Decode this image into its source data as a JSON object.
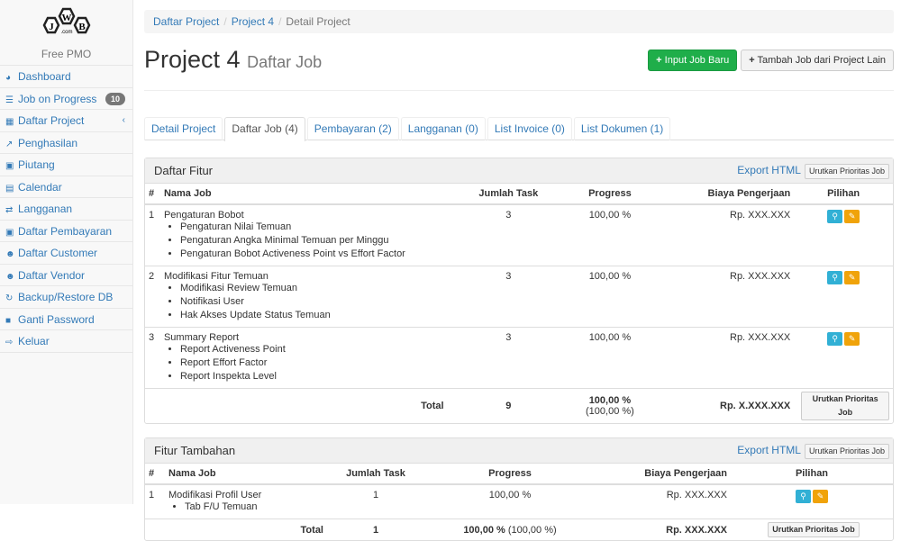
{
  "sidebar": {
    "logo": "JWB .com",
    "subtitle": "Free PMO",
    "items": [
      {
        "label": "Dashboard",
        "icon": "dashboard-icon",
        "glyph": "◕"
      },
      {
        "label": "Job on Progress",
        "icon": "tasks-icon",
        "glyph": "☰",
        "badge": "10"
      },
      {
        "label": "Daftar Project",
        "icon": "table-icon",
        "glyph": "▦",
        "chevron": "‹"
      },
      {
        "label": "Penghasilan",
        "icon": "line-chart-icon",
        "glyph": "↗"
      },
      {
        "label": "Piutang",
        "icon": "money-icon",
        "glyph": "▣"
      },
      {
        "label": "Calendar",
        "icon": "calendar-icon",
        "glyph": "▤"
      },
      {
        "label": "Langganan",
        "icon": "retweet-icon",
        "glyph": "⇄"
      },
      {
        "label": "Daftar Pembayaran",
        "icon": "money-icon",
        "glyph": "▣"
      },
      {
        "label": "Daftar Customer",
        "icon": "users-icon",
        "glyph": "☻"
      },
      {
        "label": "Daftar Vendor",
        "icon": "users-icon",
        "glyph": "☻"
      },
      {
        "label": "Backup/Restore DB",
        "icon": "refresh-icon",
        "glyph": "↻"
      },
      {
        "label": "Ganti Password",
        "icon": "lock-icon",
        "glyph": "■"
      },
      {
        "label": "Keluar",
        "icon": "sign-out-icon",
        "glyph": "⇨"
      }
    ]
  },
  "breadcrumb": [
    "Daftar Project",
    "Project 4",
    "Detail Project"
  ],
  "header": {
    "title": "Project 4",
    "subtitle": "Daftar Job",
    "btn_new": "Input Job Baru",
    "btn_add": "Tambah Job dari Project Lain"
  },
  "tabs": [
    "Detail Project",
    "Daftar Job (4)",
    "Pembayaran (2)",
    "Langganan (0)",
    "List Invoice (0)",
    "List Dokumen (1)"
  ],
  "panel1": {
    "title": "Daftar Fitur",
    "export": "Export HTML",
    "sort": "Urutkan Prioritas Job",
    "columns": [
      "#",
      "Nama Job",
      "Jumlah Task",
      "Progress",
      "Biaya Pengerjaan",
      "Pilihan"
    ],
    "rows": [
      {
        "no": "1",
        "name": "Pengaturan Bobot",
        "subs": [
          "Pengaturan Nilai Temuan",
          "Pengaturan Angka Minimal Temuan per Minggu",
          "Pengaturan Bobot Activeness Point vs Effort Factor"
        ],
        "tasks": "3",
        "progress": "100,00 %",
        "cost": "Rp. XXX.XXX"
      },
      {
        "no": "2",
        "name": "Modifikasi Fitur Temuan",
        "subs": [
          "Modifikasi Review Temuan",
          "Notifikasi User",
          "Hak Akses Update Status Temuan"
        ],
        "tasks": "3",
        "progress": "100,00 %",
        "cost": "Rp. XXX.XXX"
      },
      {
        "no": "3",
        "name": "Summary Report",
        "subs": [
          "Report Activeness Point",
          "Report Effort Factor",
          "Report Inspekta Level"
        ],
        "tasks": "3",
        "progress": "100,00 %",
        "cost": "Rp. XXX.XXX"
      }
    ],
    "total": {
      "label": "Total",
      "tasks": "9",
      "progress": "100,00 %",
      "progress2": "(100,00 %)",
      "cost": "Rp. X.XXX.XXX"
    }
  },
  "panel2": {
    "title": "Fitur Tambahan",
    "export": "Export HTML",
    "sort": "Urutkan Prioritas Job",
    "columns": [
      "#",
      "Nama Job",
      "Jumlah Task",
      "Progress",
      "Biaya Pengerjaan",
      "Pilihan"
    ],
    "rows": [
      {
        "no": "1",
        "name": "Modifikasi Profil User",
        "subs": [
          "Tab F/U Temuan"
        ],
        "tasks": "1",
        "progress": "100,00 %",
        "cost": "Rp. XXX.XXX"
      }
    ],
    "total": {
      "label": "Total",
      "tasks": "1",
      "progress": "100,00 %",
      "progress2": "(100,00 %)",
      "cost": "Rp. XXX.XXX"
    }
  }
}
